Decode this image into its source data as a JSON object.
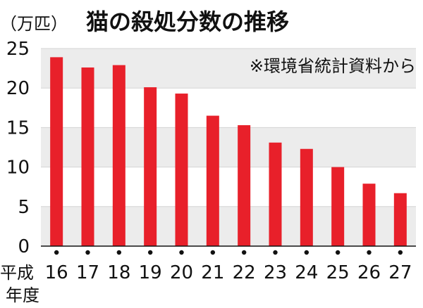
{
  "chart_data": {
    "type": "bar",
    "title": "猫の殺処分数の推移",
    "unit_label": "（万匹）",
    "source_note": "※環境省統計資料から",
    "x_label_prefix": "平成",
    "x_label_suffix": "年度",
    "categories": [
      "16",
      "17",
      "18",
      "19",
      "20",
      "21",
      "22",
      "23",
      "24",
      "25",
      "26",
      "27"
    ],
    "values": [
      23.9,
      22.6,
      22.9,
      20.1,
      19.3,
      16.5,
      15.3,
      13.1,
      12.3,
      10.0,
      7.9,
      6.7
    ],
    "ylim": [
      0,
      25
    ],
    "yticks": [
      "0",
      "5",
      "10",
      "15",
      "20",
      "25"
    ],
    "bar_color": "#e8202a",
    "band_color": "#ececec",
    "grid": true
  }
}
